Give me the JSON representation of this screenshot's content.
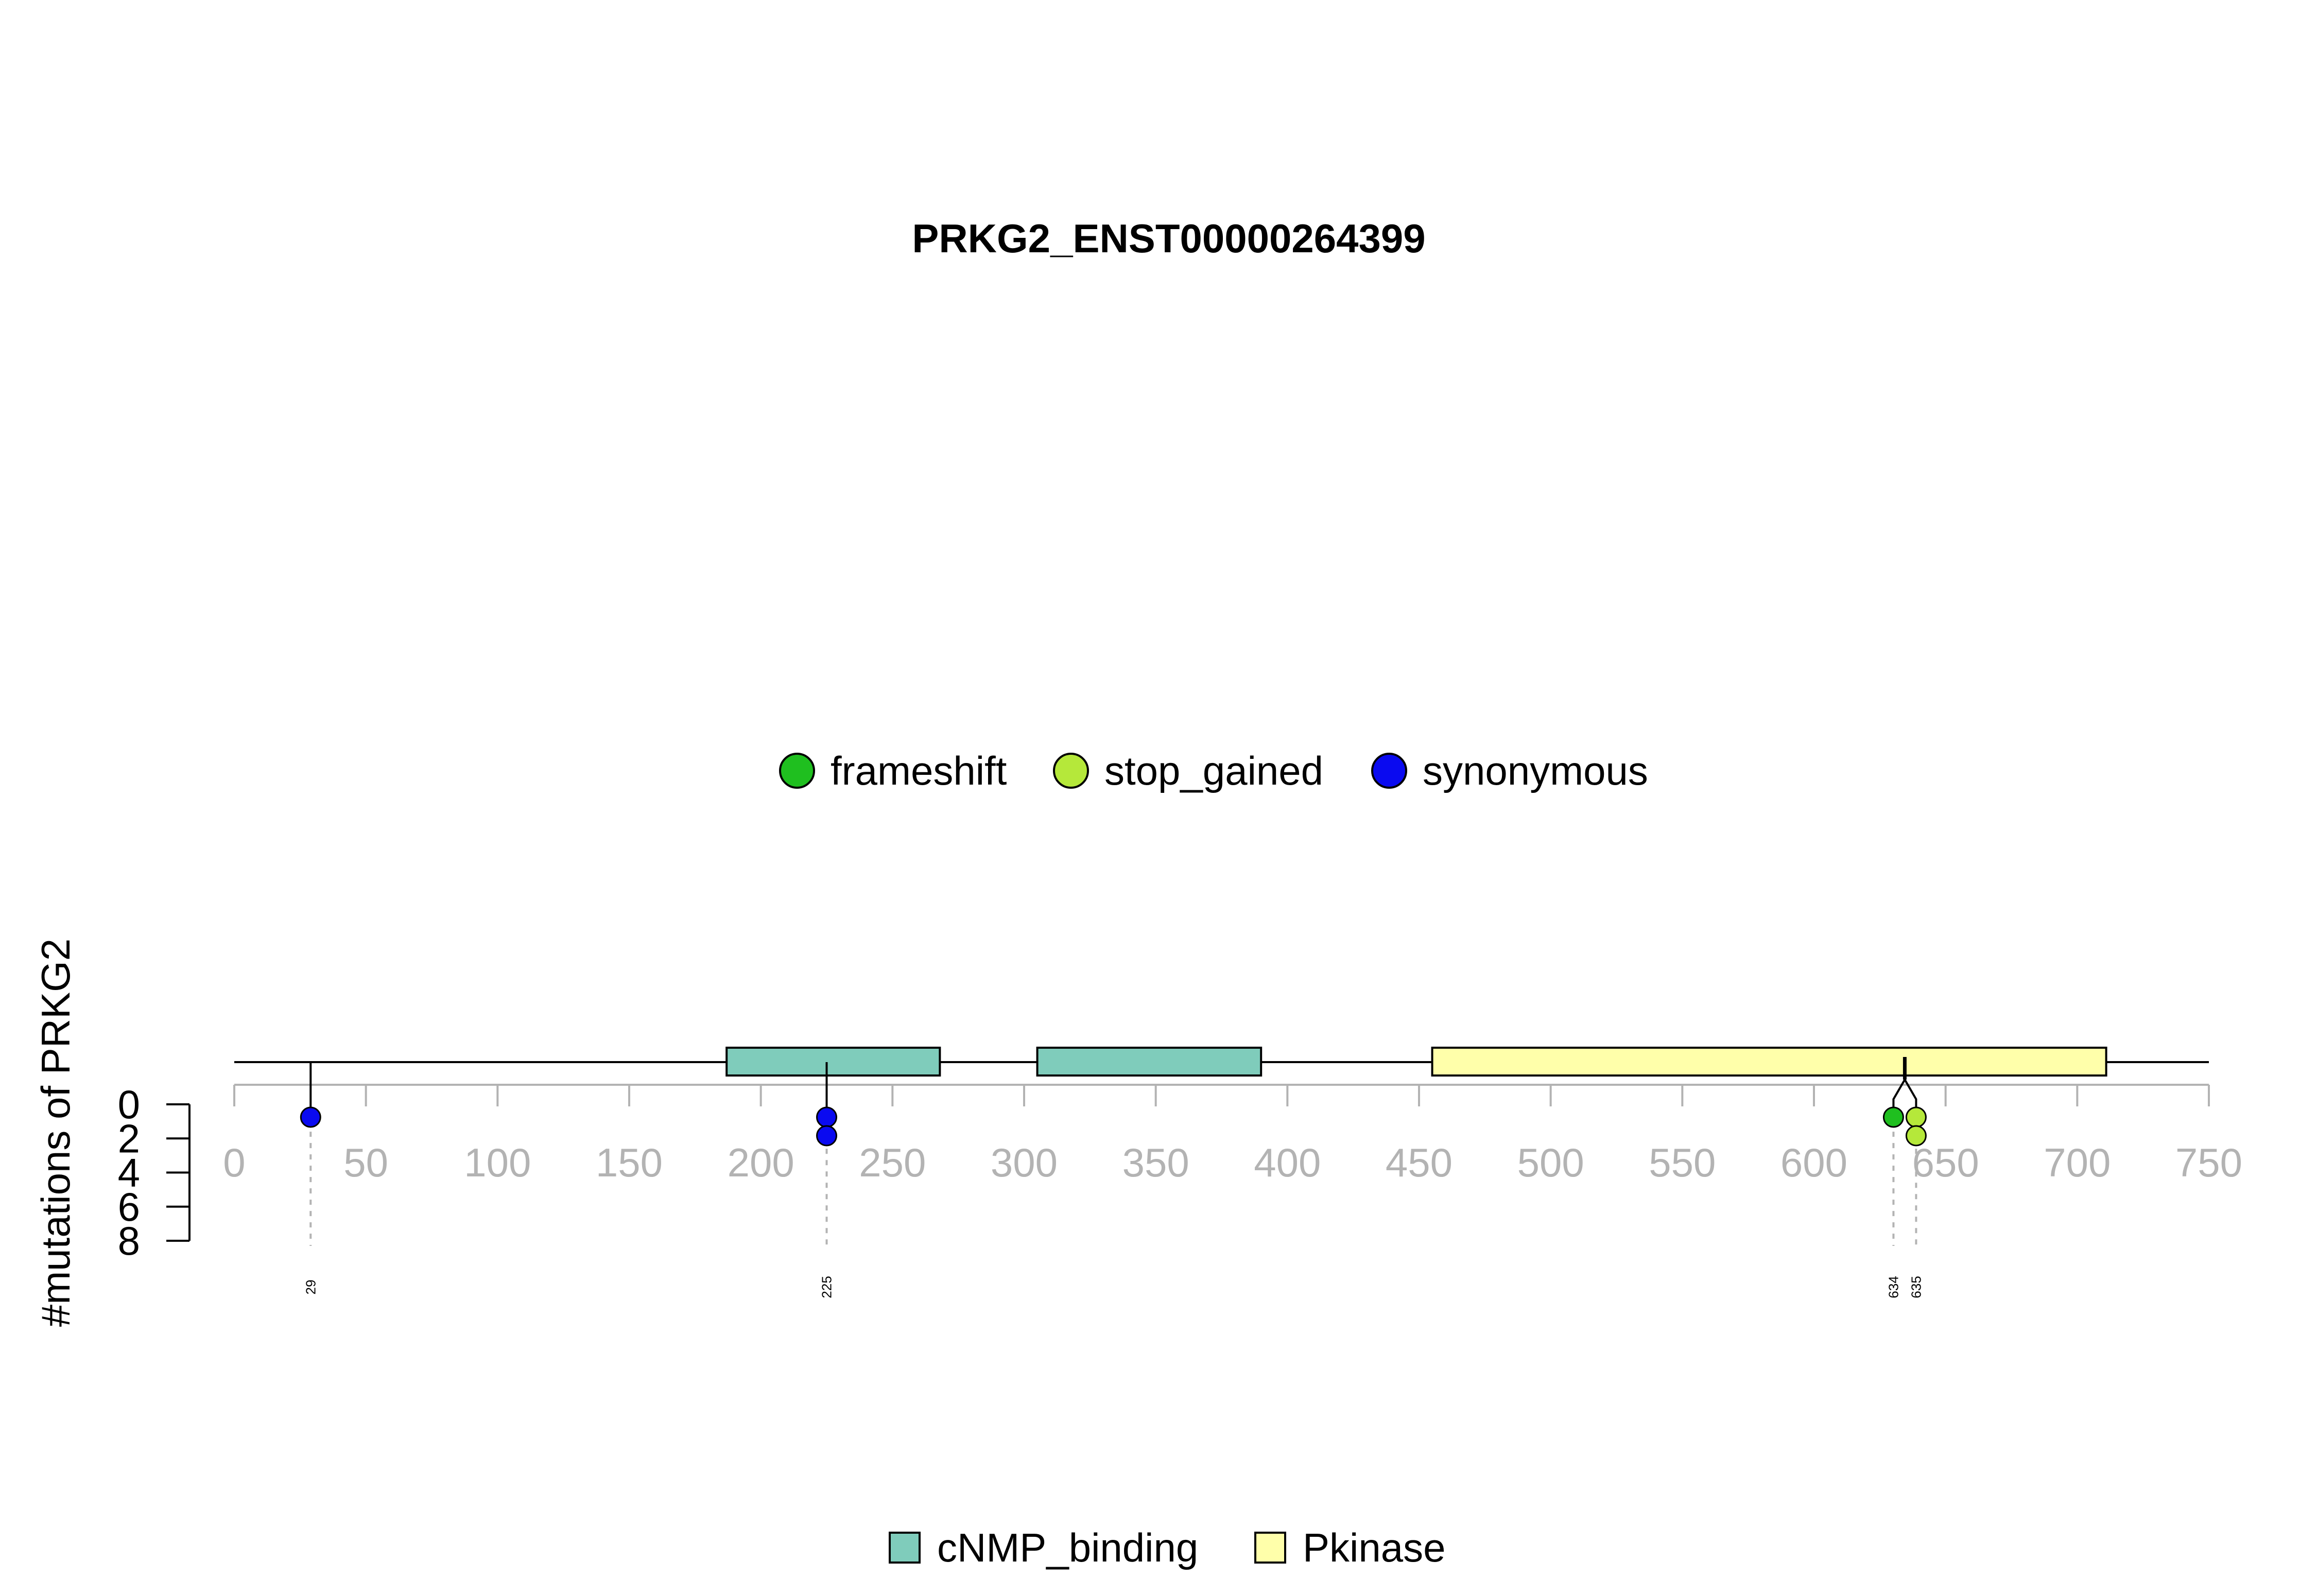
{
  "chart_data": {
    "type": "lollipop",
    "title": "PRKG2_ENST00000264399",
    "ylabel": "#mutations of PRKG2",
    "xlim": [
      0,
      750
    ],
    "x_ticks": [
      0,
      50,
      100,
      150,
      200,
      250,
      300,
      350,
      400,
      450,
      500,
      550,
      600,
      650,
      700,
      750
    ],
    "y_ticks": [
      0,
      2,
      4,
      6,
      8
    ],
    "protein_length": 750,
    "mutation_legend": [
      {
        "name": "frameshift",
        "color": "#1fbf1f"
      },
      {
        "name": "stop_gained",
        "color": "#b5e83a"
      },
      {
        "name": "synonymous",
        "color": "#0a0af0"
      }
    ],
    "domain_legend": [
      {
        "name": "cNMP_binding",
        "color": "#7fccbb"
      },
      {
        "name": "Pkinase",
        "color": "#ffffaa"
      }
    ],
    "domains": [
      {
        "name": "cNMP_binding",
        "start": 187,
        "end": 268
      },
      {
        "name": "cNMP_binding",
        "start": 305,
        "end": 390
      },
      {
        "name": "Pkinase",
        "start": 455,
        "end": 711
      }
    ],
    "mutations": [
      {
        "position": 29,
        "label": "29",
        "type": "synonymous",
        "count": 1
      },
      {
        "position": 225,
        "label": "225",
        "type": "synonymous",
        "count": 2
      },
      {
        "position": 634,
        "label": "634",
        "type": "frameshift",
        "count": 1
      },
      {
        "position": 635,
        "label": "635",
        "type": "stop_gained",
        "count": 2
      }
    ]
  }
}
